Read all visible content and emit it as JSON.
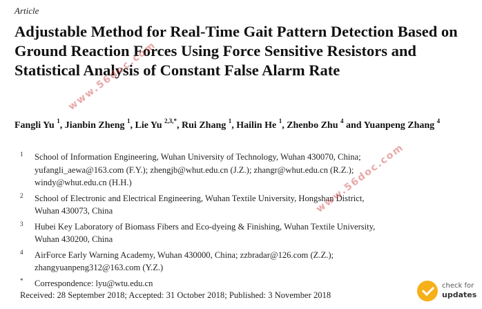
{
  "article_label": "Article",
  "title": "Adjustable Method for Real-Time Gait Pattern Detection Based on Ground Reaction Forces Using Force Sensitive Resistors and Statistical Analysis of Constant False Alarm Rate",
  "authors": [
    {
      "name": "Fangli Yu",
      "sup": "1",
      "sep": ", "
    },
    {
      "name": "Jianbin Zheng",
      "sup": "1",
      "sep": ", "
    },
    {
      "name": "Lie Yu",
      "sup": "2,3,*",
      "sep": ", "
    },
    {
      "name": "Rui Zhang",
      "sup": "1",
      "sep": ", "
    },
    {
      "name": "Hailin He",
      "sup": "1",
      "sep": ", "
    },
    {
      "name": "Zhenbo Zhu",
      "sup": "4",
      "sep": " and "
    },
    {
      "name": "Yuanpeng Zhang",
      "sup": "4",
      "sep": ""
    }
  ],
  "affiliations": [
    {
      "mark": "1",
      "lines": [
        "School of Information Engineering, Wuhan University of Technology, Wuhan 430070, China;",
        "yufangli_aewa@163.com (F.Y.); zhengjb@whut.edu.cn (J.Z.); zhangr@whut.edu.cn (R.Z.);",
        "windy@whut.edu.cn (H.H.)"
      ]
    },
    {
      "mark": "2",
      "lines": [
        "School of Electronic and Electrical Engineering, Wuhan Textile University, Hongshan District,",
        "Wuhan 430073, China"
      ]
    },
    {
      "mark": "3",
      "lines": [
        "Hubei Key Laboratory of Biomass Fibers and Eco-dyeing & Finishing, Wuhan Textile University,",
        "Wuhan 430200, China"
      ]
    },
    {
      "mark": "4",
      "lines": [
        "AirForce Early Warning Academy, Wuhan 430000, China; zzbradar@126.com (Z.Z.);",
        "zhangyuanpeng312@163.com (Y.Z.)"
      ]
    },
    {
      "mark": "*",
      "lines": [
        "Correspondence: lyu@wtu.edu.cn"
      ]
    }
  ],
  "dates": "Received: 28 September 2018; Accepted: 31 October 2018; Published: 3 November 2018",
  "watermark_text": "www.56doc.com",
  "badge": {
    "line1": "check for",
    "line2": "updates",
    "icon": "check-icon",
    "color": "#f6b01a"
  }
}
